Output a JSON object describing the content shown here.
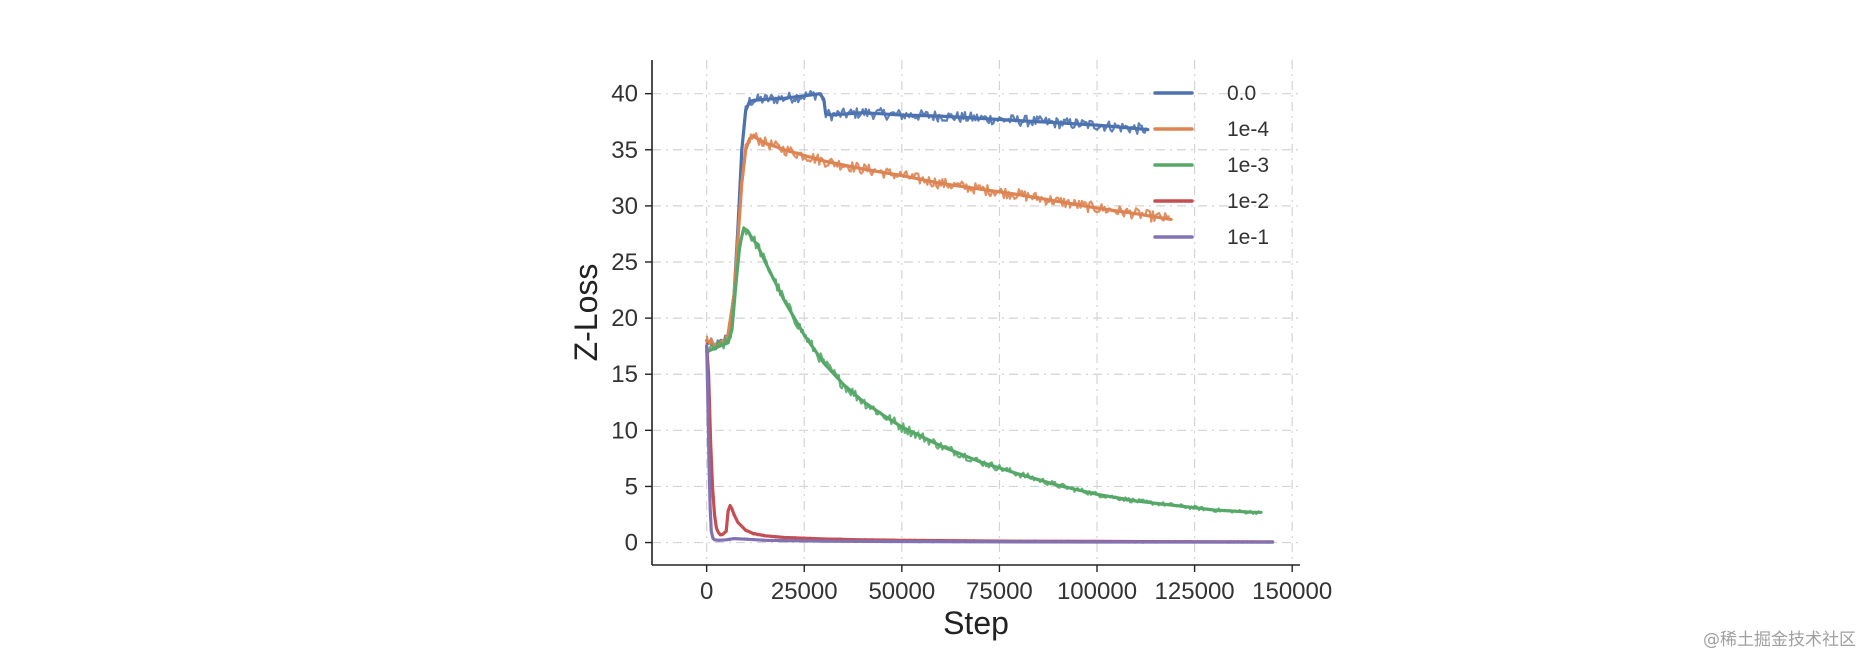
{
  "watermark": "@稀土掘金技术社区",
  "chart_data": {
    "type": "line",
    "title": "",
    "xlabel": "Step",
    "ylabel": "Z-Loss",
    "xlim": [
      -14000,
      152000
    ],
    "ylim": [
      -2,
      43
    ],
    "xticks": [
      0,
      25000,
      50000,
      75000,
      100000,
      125000,
      150000
    ],
    "xtick_labels": [
      "0",
      "25000",
      "50000",
      "75000",
      "100000",
      "125000",
      "150000"
    ],
    "yticks": [
      0,
      5,
      10,
      15,
      20,
      25,
      30,
      35,
      40
    ],
    "ytick_labels": [
      "0",
      "5",
      "10",
      "15",
      "20",
      "25",
      "30",
      "35",
      "40"
    ],
    "grid": true,
    "legend_position": "top-right",
    "series": [
      {
        "name": "0.0",
        "color": "#4c72b0",
        "x": [
          0,
          2000,
          4000,
          5500,
          7000,
          8000,
          9000,
          10000,
          11000,
          12000,
          15000,
          20000,
          25000,
          29000,
          30000,
          30500,
          32000,
          40000,
          50000,
          60000,
          70000,
          80000,
          90000,
          100000,
          113000
        ],
        "y": [
          18,
          17.5,
          17.8,
          18.5,
          22,
          28,
          35,
          38.5,
          39.3,
          39.4,
          39.5,
          39.6,
          39.8,
          40.0,
          39.5,
          38.2,
          38.1,
          38.3,
          38.1,
          38.0,
          37.8,
          37.6,
          37.4,
          37.2,
          36.8
        ]
      },
      {
        "name": "1e-4",
        "color": "#dd8452",
        "x": [
          0,
          2000,
          4000,
          5500,
          7000,
          8000,
          9000,
          10000,
          11000,
          12000,
          13000,
          15000,
          20000,
          25000,
          30000,
          40000,
          50000,
          60000,
          70000,
          80000,
          90000,
          100000,
          110000,
          119000
        ],
        "y": [
          18,
          17.5,
          17.8,
          18.5,
          22,
          27,
          32,
          35,
          36.0,
          36.2,
          36.0,
          35.6,
          35.0,
          34.5,
          34.0,
          33.3,
          32.7,
          32.0,
          31.5,
          31.0,
          30.4,
          29.8,
          29.3,
          28.8
        ]
      },
      {
        "name": "1e-3",
        "color": "#55a868",
        "x": [
          0,
          2000,
          4000,
          5500,
          6500,
          7500,
          8500,
          9500,
          10500,
          11500,
          13000,
          15000,
          20000,
          25000,
          30000,
          35000,
          40000,
          45000,
          50000,
          60000,
          70000,
          80000,
          90000,
          100000,
          110000,
          120000,
          130000,
          140000,
          142000
        ],
        "y": [
          17,
          17.3,
          17.6,
          17.8,
          19,
          23,
          26.5,
          28,
          27.8,
          27.2,
          26.5,
          25,
          21.5,
          18.5,
          16,
          14.1,
          12.6,
          11.4,
          10.3,
          8.6,
          7.2,
          6.1,
          5.1,
          4.3,
          3.7,
          3.3,
          2.9,
          2.7,
          2.7
        ]
      },
      {
        "name": "1e-2",
        "color": "#c44e52",
        "x": [
          0,
          500,
          1000,
          1500,
          2000,
          2500,
          3000,
          3500,
          4000,
          5000,
          5500,
          6000,
          6500,
          7000,
          8000,
          10000,
          12000,
          15000,
          20000,
          30000,
          40000,
          50000,
          60000,
          80000,
          100000,
          120000,
          145000
        ],
        "y": [
          17.5,
          15,
          9,
          5,
          2.5,
          1.3,
          0.9,
          0.7,
          0.7,
          1.0,
          2.8,
          3.3,
          3.0,
          2.5,
          1.8,
          1.1,
          0.8,
          0.6,
          0.45,
          0.32,
          0.25,
          0.2,
          0.17,
          0.12,
          0.1,
          0.08,
          0.06
        ]
      },
      {
        "name": "1e-1",
        "color": "#8172b3",
        "x": [
          0,
          300,
          600,
          900,
          1200,
          1600,
          2000,
          3000,
          5000,
          7000,
          10000,
          15000,
          30000,
          60000,
          100000,
          145000
        ],
        "y": [
          17.5,
          13,
          7,
          3,
          1.0,
          0.4,
          0.25,
          0.2,
          0.25,
          0.35,
          0.3,
          0.2,
          0.12,
          0.08,
          0.05,
          0.04
        ]
      }
    ]
  }
}
